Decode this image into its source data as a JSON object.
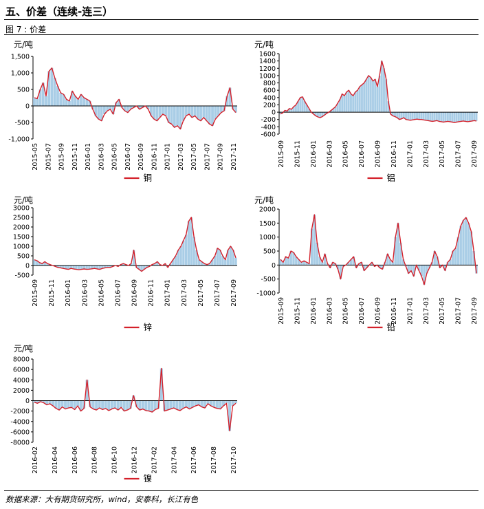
{
  "section_title": "五、价差（连续-连三）",
  "figure_caption": "图 7 : 价差",
  "source_note": "数据来源：大有期货研究所，wind，安泰科，长江有色",
  "colors": {
    "line": "#d4202a",
    "area": "#a9cde6"
  },
  "chart_data": [
    {
      "type": "area",
      "unit": "元/吨",
      "series": [
        {
          "name": "铜",
          "values": [
            250,
            220,
            500,
            700,
            300,
            1050,
            1150,
            850,
            600,
            400,
            350,
            200,
            150,
            450,
            300,
            200,
            350,
            250,
            200,
            150,
            -100,
            -300,
            -400,
            -450,
            -250,
            -150,
            -100,
            -250,
            100,
            200,
            -50,
            -150,
            -200,
            -100,
            -50,
            0,
            -100,
            -50,
            0,
            -100,
            -300,
            -400,
            -450,
            -350,
            -250,
            -300,
            -500,
            -550,
            -650,
            -600,
            -700,
            -450,
            -300,
            -250,
            -350,
            -300,
            -400,
            -450,
            -350,
            -450,
            -550,
            -600,
            -400,
            -300,
            -200,
            -150,
            300,
            550,
            -100,
            -200
          ]
        }
      ],
      "x_ticks": [
        "2015-05",
        "2015-07",
        "2015-09",
        "2015-11",
        "2016-01",
        "2016-03",
        "2016-05",
        "2016-07",
        "2016-09",
        "2016-11",
        "2017-01",
        "2017-03",
        "2017-05",
        "2017-07",
        "2017-09",
        "2017-11"
      ],
      "y_ticks": [
        "1,500",
        "1,000",
        "500",
        "0",
        "-500",
        "-1,000"
      ],
      "ylim": [
        -1000,
        1500
      ],
      "legend": "铜"
    },
    {
      "type": "area",
      "unit": "元/吨",
      "series": [
        {
          "name": "铝",
          "values": [
            -50,
            -20,
            50,
            30,
            100,
            80,
            150,
            200,
            300,
            400,
            420,
            300,
            200,
            100,
            0,
            -50,
            -100,
            -130,
            -150,
            -120,
            -80,
            -30,
            0,
            50,
            100,
            150,
            250,
            350,
            500,
            450,
            550,
            600,
            500,
            450,
            550,
            600,
            700,
            750,
            800,
            900,
            1000,
            950,
            850,
            900,
            700,
            1000,
            1400,
            1200,
            900,
            300,
            -50,
            -100,
            -120,
            -150,
            -200,
            -180,
            -150,
            -200,
            -210,
            -220,
            -210,
            -200,
            -190,
            -200,
            -200,
            -210,
            -220,
            -230,
            -240,
            -250,
            -240,
            -230,
            -250,
            -260,
            -270,
            -260,
            -250,
            -260,
            -270,
            -280,
            -270,
            -260,
            -250,
            -240,
            -250,
            -260,
            -250,
            -240,
            -230,
            -240
          ]
        }
      ],
      "x_ticks": [
        "2015-09",
        "2015-11",
        "2016-01",
        "2016-03",
        "2016-05",
        "2016-07",
        "2016-09",
        "2016-11",
        "2017-01",
        "2017-03",
        "2017-05",
        "2017-07",
        "2017-09"
      ],
      "y_ticks": [
        "1600",
        "1400",
        "1200",
        "1000",
        "800",
        "600",
        "400",
        "200",
        "0",
        "-200",
        "-400",
        "-600"
      ],
      "ylim": [
        -600,
        1600
      ],
      "legend": "铝"
    },
    {
      "type": "area",
      "unit": "元/吨",
      "series": [
        {
          "name": "锌",
          "values": [
            300,
            250,
            150,
            100,
            200,
            100,
            50,
            0,
            -50,
            -100,
            -120,
            -150,
            -180,
            -200,
            -150,
            -180,
            -200,
            -220,
            -200,
            -180,
            -200,
            -190,
            -170,
            -150,
            -180,
            -200,
            -150,
            -120,
            -100,
            -100,
            -50,
            0,
            -50,
            50,
            100,
            50,
            0,
            100,
            800,
            -100,
            -200,
            -300,
            -200,
            -100,
            -50,
            50,
            100,
            200,
            50,
            0,
            100,
            -100,
            100,
            300,
            500,
            800,
            1000,
            1300,
            1600,
            2300,
            2500,
            1500,
            800,
            300,
            200,
            100,
            50,
            100,
            300,
            500,
            900,
            800,
            500,
            300,
            800,
            1000,
            800,
            400
          ]
        }
      ],
      "x_ticks": [
        "2015-09",
        "2015-11",
        "2016-01",
        "2016-03",
        "2016-05",
        "2016-07",
        "2016-09",
        "2016-11",
        "2017-01",
        "2017-03",
        "2017-05",
        "2017-07",
        "2017-09"
      ],
      "y_ticks": [
        "3000",
        "2500",
        "2000",
        "1500",
        "1000",
        "500",
        "0",
        "-500"
      ],
      "ylim": [
        -500,
        3000
      ],
      "legend": "锌"
    },
    {
      "type": "area",
      "unit": "元/吨",
      "series": [
        {
          "name": "铅",
          "values": [
            200,
            100,
            300,
            250,
            500,
            450,
            300,
            200,
            100,
            150,
            100,
            50,
            1300,
            1800,
            800,
            300,
            100,
            400,
            50,
            -100,
            100,
            50,
            -150,
            -500,
            -50,
            0,
            100,
            200,
            300,
            -100,
            50,
            100,
            -200,
            -100,
            0,
            100,
            -50,
            0,
            -100,
            -150,
            100,
            400,
            200,
            100,
            1000,
            1500,
            800,
            200,
            -50,
            -300,
            -200,
            -400,
            0,
            -200,
            -400,
            -700,
            -300,
            -100,
            100,
            500,
            300,
            -100,
            0,
            -200,
            100,
            200,
            500,
            600,
            1000,
            1400,
            1600,
            1700,
            1500,
            1200,
            500,
            -300
          ]
        }
      ],
      "x_ticks": [
        "2015-09",
        "2015-11",
        "2016-01",
        "2016-03",
        "2016-05",
        "2016-07",
        "2016-09",
        "2016-11",
        "2017-01",
        "2017-03",
        "2017-05",
        "2017-07",
        "2017-09"
      ],
      "y_ticks": [
        "2000",
        "1500",
        "1000",
        "500",
        "0",
        "-500",
        "-1000"
      ],
      "ylim": [
        -1000,
        2000
      ],
      "legend": "铅"
    },
    {
      "type": "area",
      "unit": "元/吨",
      "series": [
        {
          "name": "镍",
          "values": [
            -300,
            -500,
            -200,
            -400,
            -800,
            -600,
            -1000,
            -1500,
            -1800,
            -1200,
            -1600,
            -1400,
            -1300,
            -1700,
            -1000,
            -2000,
            -1500,
            4000,
            -1200,
            -1600,
            -1800,
            -1400,
            -1700,
            -1500,
            -1900,
            -1600,
            -1400,
            -1800,
            -1300,
            -2000,
            -1800,
            -1500,
            1000,
            -1200,
            -1800,
            -1600,
            -1900,
            -2000,
            -2200,
            -1700,
            -1500,
            6200,
            -2000,
            -1800,
            -1600,
            -1400,
            -1700,
            -1900,
            -1500,
            -1200,
            -1600,
            -1300,
            -1000,
            -800,
            -1200,
            -1400,
            -600,
            -1000,
            -1300,
            -1500,
            -1600,
            -1000,
            -500,
            -5800,
            -1000,
            -500
          ]
        }
      ],
      "x_ticks": [
        "2016-02",
        "2016-04",
        "2016-06",
        "2016-08",
        "2016-10",
        "2016-12",
        "2017-02",
        "2017-04",
        "2017-06",
        "2017-08",
        "2017-10"
      ],
      "y_ticks": [
        "8000",
        "6000",
        "4000",
        "2000",
        "0",
        "-2000",
        "-4000",
        "-6000",
        "-8000"
      ],
      "ylim": [
        -8000,
        8000
      ],
      "legend": "镍"
    }
  ]
}
